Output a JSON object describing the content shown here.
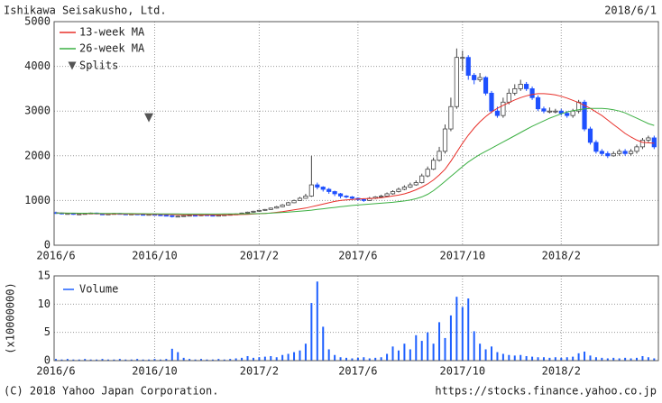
{
  "chart_data": [
    {
      "type": "candlestick",
      "title": "Ishikawa Seisakusho, Ltd.",
      "subtitle": "2018/6/1",
      "categories": [
        "2016/6",
        null,
        null,
        null,
        null,
        null,
        null,
        null,
        null,
        null,
        null,
        null,
        null,
        null,
        null,
        null,
        null,
        "2016/10",
        null,
        null,
        null,
        null,
        null,
        null,
        null,
        null,
        null,
        null,
        null,
        null,
        null,
        null,
        null,
        null,
        null,
        "2017/2",
        null,
        null,
        null,
        null,
        null,
        null,
        null,
        null,
        null,
        null,
        null,
        null,
        null,
        null,
        null,
        null,
        "2017/6",
        null,
        null,
        null,
        null,
        null,
        null,
        null,
        null,
        null,
        null,
        null,
        null,
        null,
        null,
        null,
        null,
        null,
        "2017/10",
        null,
        null,
        null,
        null,
        null,
        null,
        null,
        null,
        null,
        null,
        null,
        null,
        null,
        null,
        null,
        null,
        "2018/2",
        null,
        null,
        null,
        null,
        null,
        null,
        null,
        null,
        null,
        null,
        null,
        null,
        null,
        null,
        null,
        null
      ],
      "open": [
        730,
        720,
        700,
        710,
        690,
        700,
        710,
        720,
        700,
        690,
        700,
        710,
        700,
        690,
        700,
        690,
        680,
        690,
        680,
        670,
        660,
        640,
        650,
        660,
        670,
        660,
        680,
        670,
        660,
        670,
        680,
        690,
        700,
        720,
        740,
        760,
        780,
        800,
        830,
        860,
        900,
        950,
        1000,
        1050,
        1100,
        1350,
        1300,
        1250,
        1200,
        1150,
        1100,
        1080,
        1050,
        1020,
        1000,
        1050,
        1080,
        1100,
        1150,
        1200,
        1250,
        1300,
        1350,
        1400,
        1550,
        1700,
        1900,
        2100,
        2600,
        3100,
        4200,
        4200,
        3800,
        3700,
        3750,
        3400,
        3000,
        2900,
        3200,
        3400,
        3500,
        3600,
        3500,
        3300,
        3050,
        3000,
        3000,
        3000,
        2950,
        2900,
        3000,
        3200,
        2600,
        2300,
        2100,
        2050,
        2000,
        2050,
        2100,
        2050,
        2100,
        2200,
        2350,
        2400
      ],
      "high": [
        750,
        730,
        720,
        720,
        710,
        720,
        730,
        730,
        710,
        710,
        720,
        720,
        710,
        710,
        710,
        700,
        700,
        700,
        690,
        680,
        670,
        660,
        670,
        680,
        680,
        690,
        690,
        680,
        680,
        690,
        700,
        710,
        730,
        750,
        770,
        790,
        810,
        840,
        880,
        920,
        970,
        1020,
        1080,
        1150,
        2000,
        1400,
        1320,
        1280,
        1220,
        1170,
        1120,
        1100,
        1070,
        1040,
        1080,
        1100,
        1130,
        1180,
        1230,
        1290,
        1340,
        1400,
        1450,
        1600,
        1760,
        1960,
        2200,
        2700,
        3300,
        4400,
        4350,
        4250,
        3850,
        3850,
        3780,
        3450,
        3100,
        3300,
        3500,
        3600,
        3700,
        3650,
        3550,
        3350,
        3100,
        3080,
        3050,
        3050,
        3000,
        3050,
        3250,
        3250,
        2650,
        2350,
        2150,
        2100,
        2100,
        2150,
        2150,
        2150,
        2250,
        2400,
        2450,
        2450
      ],
      "low": [
        700,
        690,
        690,
        680,
        680,
        690,
        700,
        690,
        680,
        680,
        690,
        690,
        680,
        680,
        680,
        670,
        670,
        670,
        660,
        650,
        620,
        630,
        640,
        650,
        650,
        650,
        660,
        650,
        650,
        660,
        670,
        680,
        690,
        710,
        730,
        750,
        770,
        790,
        820,
        850,
        890,
        940,
        990,
        1040,
        1080,
        1250,
        1200,
        1150,
        1100,
        1050,
        1050,
        1020,
        990,
        970,
        990,
        1030,
        1060,
        1080,
        1130,
        1180,
        1230,
        1280,
        1330,
        1380,
        1520,
        1680,
        1870,
        2050,
        2550,
        3050,
        3900,
        3700,
        3600,
        3650,
        3350,
        2950,
        2850,
        2850,
        3150,
        3350,
        3450,
        3450,
        3250,
        3000,
        2950,
        2950,
        2950,
        2900,
        2850,
        2850,
        2950,
        2550,
        2250,
        2050,
        2000,
        1950,
        1980,
        2000,
        2000,
        2000,
        2050,
        2150,
        2300,
        2150
      ],
      "close": [
        720,
        700,
        710,
        690,
        700,
        710,
        720,
        700,
        690,
        700,
        710,
        700,
        690,
        700,
        690,
        680,
        690,
        680,
        670,
        660,
        640,
        650,
        660,
        670,
        660,
        680,
        670,
        660,
        670,
        680,
        690,
        700,
        720,
        740,
        760,
        780,
        800,
        830,
        860,
        900,
        950,
        1000,
        1050,
        1100,
        1350,
        1300,
        1250,
        1200,
        1150,
        1100,
        1080,
        1050,
        1020,
        1000,
        1050,
        1080,
        1100,
        1150,
        1200,
        1250,
        1300,
        1350,
        1400,
        1550,
        1700,
        1900,
        2100,
        2600,
        3100,
        4200,
        4200,
        3800,
        3700,
        3750,
        3400,
        3000,
        2900,
        3200,
        3400,
        3500,
        3600,
        3500,
        3300,
        3050,
        3000,
        3000,
        3000,
        2950,
        2900,
        3000,
        3200,
        2600,
        2300,
        2100,
        2050,
        2000,
        2050,
        2100,
        2050,
        2100,
        2200,
        2350,
        2400,
        2200
      ],
      "up_color": "#ffffff",
      "down_color": "#1e50ff",
      "series": [
        {
          "name": "13-week MA",
          "color": "#e8302a",
          "values": [
            720,
            718,
            716,
            714,
            712,
            710,
            708,
            706,
            704,
            702,
            700,
            699,
            698,
            697,
            696,
            695,
            694,
            692,
            690,
            688,
            686,
            684,
            682,
            680,
            679,
            678,
            677,
            677,
            678,
            680,
            682,
            684,
            688,
            692,
            698,
            705,
            712,
            722,
            735,
            750,
            770,
            790,
            810,
            830,
            860,
            890,
            920,
            950,
            980,
            1000,
            1015,
            1025,
            1035,
            1040,
            1045,
            1050,
            1060,
            1080,
            1100,
            1120,
            1150,
            1190,
            1240,
            1300,
            1370,
            1460,
            1570,
            1700,
            1880,
            2080,
            2280,
            2460,
            2620,
            2760,
            2880,
            2980,
            3060,
            3130,
            3190,
            3250,
            3300,
            3340,
            3370,
            3390,
            3390,
            3380,
            3360,
            3330,
            3290,
            3240,
            3190,
            3130,
            3060,
            2980,
            2900,
            2800,
            2700,
            2600,
            2500,
            2420,
            2350,
            2300,
            2290,
            2280
          ]
        },
        {
          "name": "26-week MA",
          "color": "#3cb043",
          "values": [
            720,
            719,
            718,
            717,
            716,
            715,
            714,
            713,
            712,
            711,
            710,
            709,
            708,
            707,
            706,
            705,
            704,
            703,
            702,
            701,
            700,
            699,
            698,
            697,
            697,
            697,
            697,
            698,
            698,
            699,
            700,
            701,
            702,
            703,
            705,
            708,
            712,
            718,
            725,
            733,
            740,
            750,
            760,
            772,
            785,
            800,
            815,
            830,
            845,
            860,
            875,
            890,
            900,
            910,
            920,
            930,
            940,
            950,
            960,
            975,
            990,
            1010,
            1040,
            1080,
            1140,
            1220,
            1320,
            1430,
            1540,
            1650,
            1760,
            1860,
            1950,
            2030,
            2100,
            2170,
            2240,
            2310,
            2380,
            2450,
            2520,
            2590,
            2660,
            2720,
            2780,
            2840,
            2890,
            2940,
            2980,
            3010,
            3030,
            3050,
            3060,
            3060,
            3060,
            3050,
            3030,
            3000,
            2960,
            2900,
            2840,
            2780,
            2720,
            2680
          ]
        }
      ],
      "splits": {
        "name": "Splits",
        "color": "#555555",
        "values": [
          null,
          null,
          null,
          null,
          null,
          null,
          null,
          null,
          null,
          null,
          null,
          null,
          null,
          null,
          null,
          null,
          2850,
          null,
          null,
          null,
          null,
          null,
          null,
          null,
          null,
          null,
          null,
          null,
          null,
          null,
          null,
          null,
          null,
          null,
          null,
          null,
          null,
          null,
          null,
          null,
          null,
          null,
          null,
          null,
          null,
          null,
          null,
          null,
          null,
          null,
          null,
          null,
          null,
          null,
          null,
          null,
          null,
          null,
          null,
          null,
          null,
          null,
          null,
          null,
          null,
          null,
          null,
          null,
          null,
          null,
          null,
          null,
          null,
          null,
          null,
          null,
          null,
          null,
          null,
          null,
          null,
          null,
          null,
          null,
          null,
          null,
          null,
          null,
          null,
          null,
          null,
          null,
          null,
          null,
          null,
          null,
          null,
          null,
          null,
          null,
          null,
          null,
          null,
          null
        ]
      },
      "ylim": [
        0,
        5000
      ],
      "yticks": [
        0,
        1000,
        2000,
        3000,
        4000,
        5000
      ],
      "grid": true
    },
    {
      "type": "bar",
      "ylabel": "(x10000000)",
      "categories": [
        "2016/6",
        null,
        null,
        null,
        null,
        null,
        null,
        null,
        null,
        null,
        null,
        null,
        null,
        null,
        null,
        null,
        null,
        "2016/10",
        null,
        null,
        null,
        null,
        null,
        null,
        null,
        null,
        null,
        null,
        null,
        null,
        null,
        null,
        null,
        null,
        null,
        "2017/2",
        null,
        null,
        null,
        null,
        null,
        null,
        null,
        null,
        null,
        null,
        null,
        null,
        null,
        null,
        null,
        null,
        "2017/6",
        null,
        null,
        null,
        null,
        null,
        null,
        null,
        null,
        null,
        null,
        null,
        null,
        null,
        null,
        null,
        null,
        null,
        "2017/10",
        null,
        null,
        null,
        null,
        null,
        null,
        null,
        null,
        null,
        null,
        null,
        null,
        null,
        null,
        null,
        null,
        "2018/2",
        null,
        null,
        null,
        null,
        null,
        null,
        null,
        null,
        null,
        null,
        null,
        null,
        null,
        null,
        null,
        null
      ],
      "series": [
        {
          "name": "Volume",
          "color": "#1e60ff",
          "values": [
            0.3,
            0.2,
            0.3,
            0.2,
            0.2,
            0.3,
            0.2,
            0.2,
            0.3,
            0.2,
            0.2,
            0.3,
            0.2,
            0.2,
            0.3,
            0.2,
            0.2,
            0.3,
            0.2,
            0.3,
            2.1,
            1.5,
            0.5,
            0.3,
            0.2,
            0.3,
            0.2,
            0.2,
            0.3,
            0.2,
            0.3,
            0.4,
            0.5,
            0.8,
            0.5,
            0.6,
            0.7,
            0.8,
            0.6,
            1.0,
            1.2,
            1.5,
            1.8,
            3.0,
            10.2,
            14.0,
            6.0,
            2.0,
            1.0,
            0.6,
            0.5,
            0.4,
            0.5,
            0.6,
            0.4,
            0.5,
            0.6,
            1.2,
            2.5,
            1.8,
            3.0,
            2.0,
            4.5,
            3.5,
            5.0,
            3.0,
            6.8,
            4.0,
            8.0,
            11.3,
            9.5,
            11.0,
            5.2,
            3.0,
            2.0,
            2.5,
            1.5,
            1.2,
            1.0,
            0.9,
            1.0,
            0.8,
            0.7,
            0.6,
            0.6,
            0.5,
            0.6,
            0.5,
            0.6,
            0.7,
            1.3,
            1.6,
            0.9,
            0.6,
            0.5,
            0.4,
            0.5,
            0.4,
            0.5,
            0.4,
            0.5,
            0.8,
            0.6,
            0.4
          ]
        }
      ],
      "ylim": [
        0,
        15
      ],
      "yticks": [
        0,
        5,
        10,
        15
      ],
      "grid": true
    }
  ],
  "footer": {
    "copyright": "(C) 2018 Yahoo Japan Corporation.",
    "url": "https://stocks.finance.yahoo.co.jp"
  }
}
